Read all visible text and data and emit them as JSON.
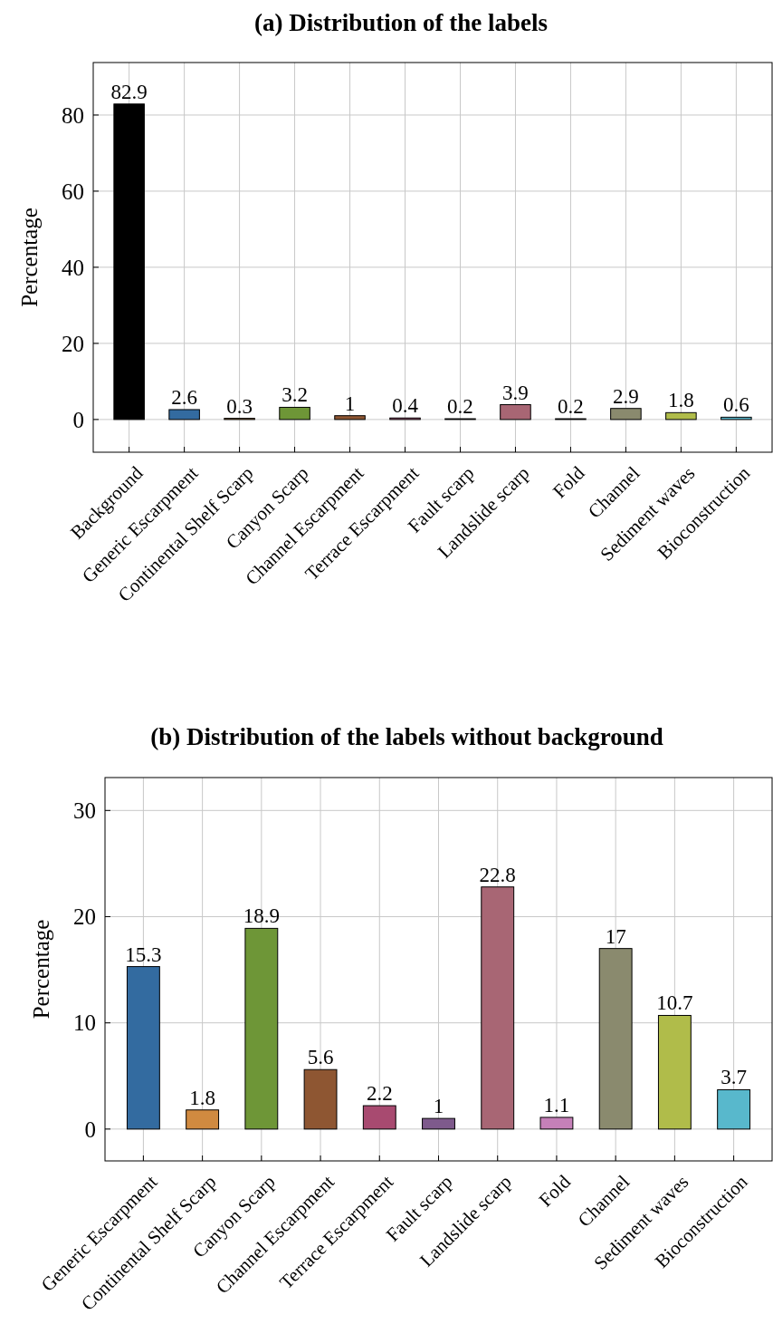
{
  "chart_data": [
    {
      "type": "bar",
      "title": "(a) Distribution of the labels",
      "ylabel": "Percentage",
      "categories": [
        "Background",
        "Generic Escarpment",
        "Continental Shelf Scarp",
        "Canyon Scarp",
        "Channel Escarpment",
        "Terrace Escarpment",
        "Fault scarp",
        "Landslide scarp",
        "Fold",
        "Channel",
        "Sediment waves",
        "Bioconstruction"
      ],
      "values": [
        82.9,
        2.6,
        0.3,
        3.2,
        1,
        0.4,
        0.2,
        3.9,
        0.2,
        2.9,
        1.8,
        0.6
      ],
      "colors": [
        "#000000",
        "#336ba0",
        "#d08a40",
        "#6e9637",
        "#8e5632",
        "#a84a70",
        "#7e5a8c",
        "#a86674",
        "#c580b8",
        "#8a8a6e",
        "#b0bc4a",
        "#58b8cc"
      ],
      "ylim": [
        -8.6,
        93.8
      ],
      "yticks": [
        0,
        20,
        40,
        60,
        80
      ],
      "grid": true,
      "data_labels": true
    },
    {
      "type": "bar",
      "title": "(b) Distribution of the labels without background",
      "ylabel": "Percentage",
      "categories": [
        "Generic Escarpment",
        "Continental Shelf Scarp",
        "Canyon Scarp",
        "Channel Escarpment",
        "Terrace Escarpment",
        "Fault scarp",
        "Landslide scarp",
        "Fold",
        "Channel",
        "Sediment waves",
        "Bioconstruction"
      ],
      "values": [
        15.3,
        1.8,
        18.9,
        5.6,
        2.2,
        1,
        22.8,
        1.1,
        17,
        10.7,
        3.7
      ],
      "colors": [
        "#336ba0",
        "#d08a40",
        "#6e9637",
        "#8e5632",
        "#a84a70",
        "#7e5a8c",
        "#a86674",
        "#c580b8",
        "#8a8a6e",
        "#b0bc4a",
        "#58b8cc"
      ],
      "ylim": [
        -3,
        33.1
      ],
      "yticks": [
        0,
        10,
        20,
        30
      ],
      "grid": true,
      "data_labels": true
    }
  ]
}
